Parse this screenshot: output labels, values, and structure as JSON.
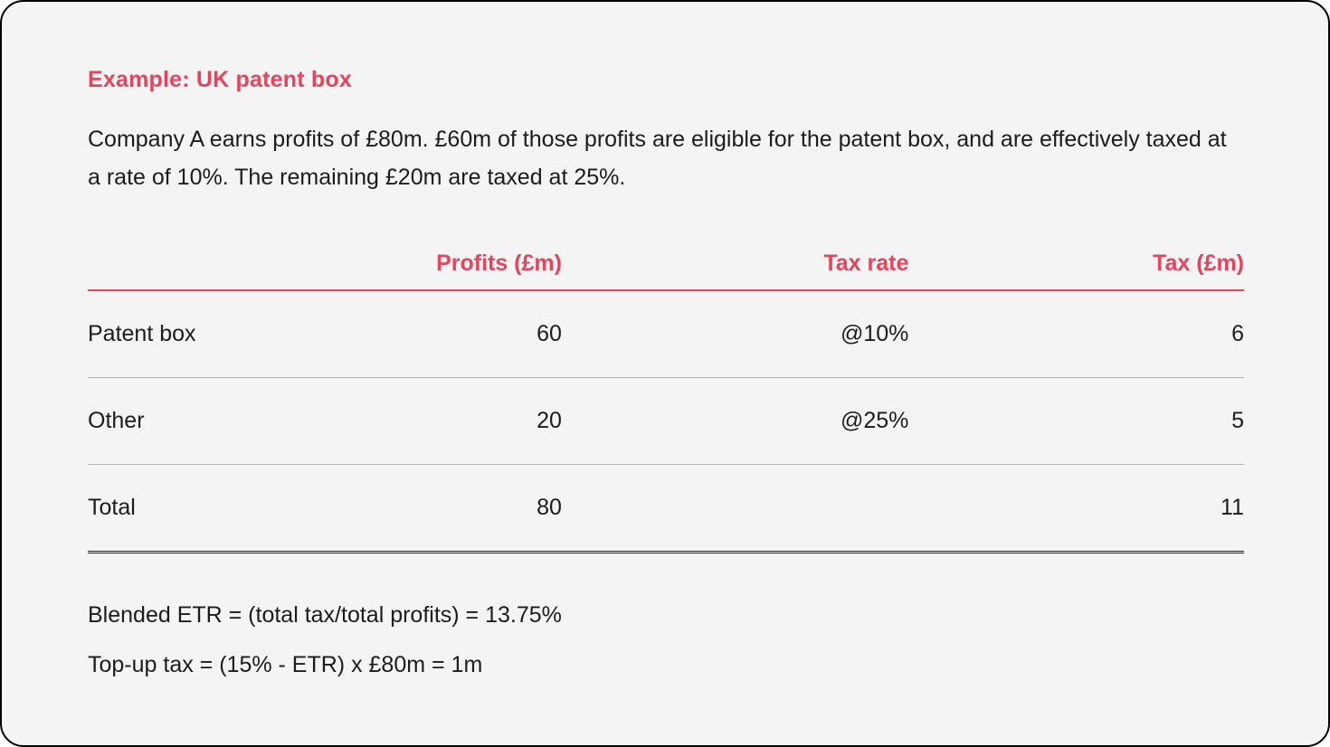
{
  "theme": {
    "accent_color": "#e8435a",
    "card_background": "#f4f4f5",
    "text_color": "#1c1c1c",
    "divider_color": "#b5b5b5",
    "frame_border_color": "#000000"
  },
  "card": {
    "title": "Example: UK patent box",
    "intro": "Company A earns profits of £80m. £60m of those profits are eligible for the patent box, and are effectively taxed at a rate of 10%. The remaining £20m are taxed at 25%.",
    "table": {
      "headers": [
        "",
        "Profits (£m)",
        "Tax rate",
        "Tax (£m)"
      ],
      "rows": [
        {
          "label": "Patent box",
          "profits": "60",
          "tax_rate": "@10%",
          "tax": "6"
        },
        {
          "label": "Other",
          "profits": "20",
          "tax_rate": "@25%",
          "tax": "5"
        },
        {
          "label": "Total",
          "profits": "80",
          "tax_rate": "",
          "tax": "11"
        }
      ]
    },
    "formulas": {
      "blended_etr": "Blended ETR = (total tax/total profits) = 13.75%",
      "top_up_tax": "Top-up tax = (15% - ETR) x £80m = 1m"
    }
  }
}
